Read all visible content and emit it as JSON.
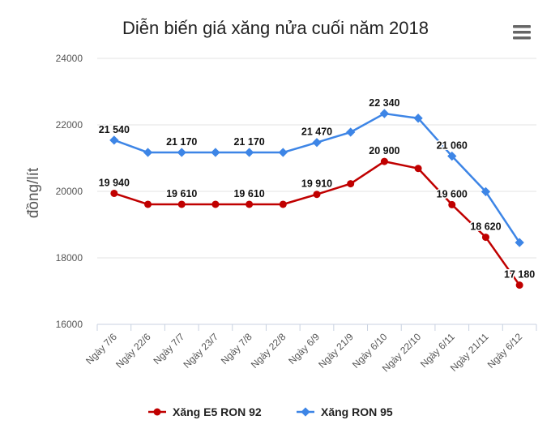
{
  "chart_data": {
    "type": "line",
    "title": "Diễn biến giá xăng nửa cuối năm 2018",
    "ylabel": "đồng/lít",
    "xlabel": "",
    "ylim": [
      16000,
      24000
    ],
    "yticks": [
      "16000",
      "18000",
      "20000",
      "22000",
      "24000"
    ],
    "categories": [
      "Ngày 7/6",
      "Ngày 22/6",
      "Ngày 7/7",
      "Ngày 23/7",
      "Ngày 7/8",
      "Ngày 22/8",
      "Ngày 6/9",
      "Ngày 21/9",
      "Ngày 6/10",
      "Ngày 22/10",
      "Ngày 6/11",
      "Ngày 21/11",
      "Ngày 6/12"
    ],
    "grid": true,
    "legend_position": "bottom",
    "series": [
      {
        "name": "Xăng E5 RON 92",
        "color": "#c00000",
        "values": [
          19940,
          19610,
          19610,
          19610,
          19610,
          19610,
          19910,
          20230,
          20900,
          20690,
          19600,
          18620,
          17180
        ],
        "labels": [
          "19 940",
          "",
          "19 610",
          "",
          "19 610",
          "",
          "19 910",
          "",
          "20 900",
          "",
          "19 600",
          "18 620",
          "17 180"
        ]
      },
      {
        "name": "Xăng RON 95",
        "color": "#3d85e6",
        "values": [
          21540,
          21170,
          21170,
          21170,
          21170,
          21170,
          21470,
          21780,
          22340,
          22200,
          21060,
          19990,
          18460
        ],
        "labels": [
          "21 540",
          "",
          "21 170",
          "",
          "21 170",
          "",
          "21 470",
          "",
          "22 340",
          "",
          "21 060",
          "",
          ""
        ]
      }
    ]
  },
  "menu_icon": "hamburger-menu-icon"
}
